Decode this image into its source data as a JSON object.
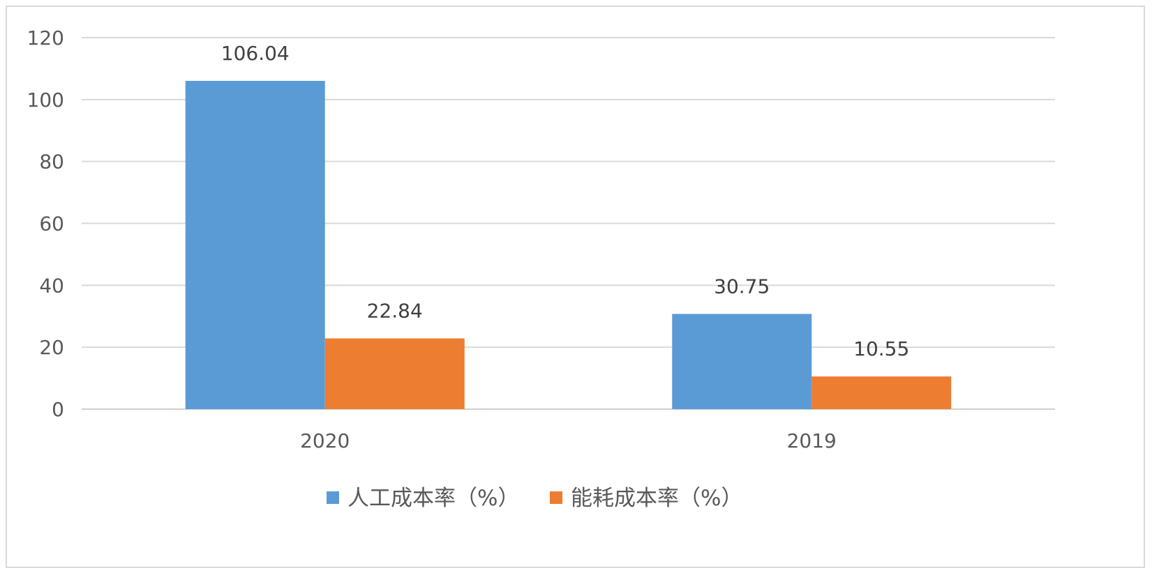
{
  "chart_data": {
    "type": "bar",
    "categories": [
      "2020",
      "2019"
    ],
    "series": [
      {
        "name": "人工成本率（%）",
        "values": [
          106.04,
          30.75
        ],
        "color": "#5b9bd5"
      },
      {
        "name": "能耗成本率（%）",
        "values": [
          22.84,
          10.55
        ],
        "color": "#ed7d31"
      }
    ],
    "y_ticks": [
      "0",
      "20",
      "40",
      "60",
      "80",
      "100",
      "120"
    ],
    "ylim": [
      0,
      120
    ],
    "data_labels": [
      [
        "106.04",
        "30.75"
      ],
      [
        "22.84",
        "10.55"
      ]
    ],
    "grid": true,
    "legend_position": "bottom"
  }
}
